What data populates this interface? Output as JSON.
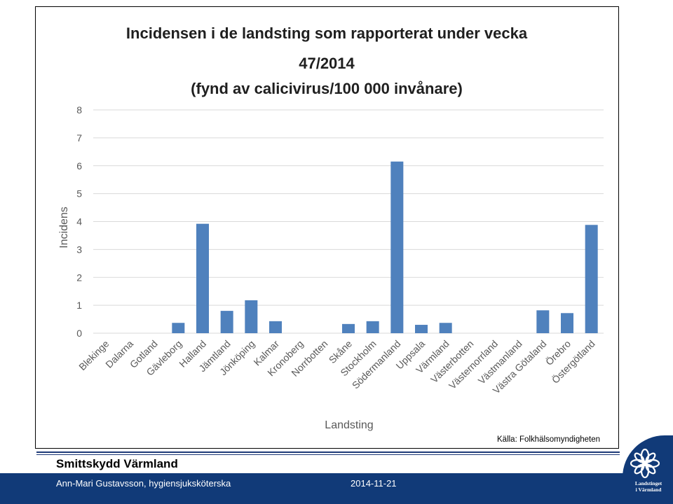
{
  "chart_data": {
    "type": "bar",
    "title": [
      "Incidensen i de landsting som rapporterat under vecka",
      "47/2014",
      "(fynd av calicivirus/100 000 invånare)"
    ],
    "xlabel": "Landsting",
    "ylabel": "Incidens",
    "ylim": [
      0,
      8
    ],
    "yticks": [
      "0",
      "1",
      "2",
      "3",
      "4",
      "5",
      "6",
      "7",
      "8"
    ],
    "grid": true,
    "bar_color": "#4f81bd",
    "categories": [
      "Blekinge",
      "Dalarna",
      "Gotland",
      "Gävleborg",
      "Halland",
      "Jämtland",
      "Jönköping",
      "Kalmar",
      "Kronoberg",
      "Norrbotten",
      "Skåne",
      "Stockholm",
      "Södermanland",
      "Uppsala",
      "Värmland",
      "Västerbotten",
      "Västernorrland",
      "Västmanland",
      "Västra Götaland",
      "Örebro",
      "Östergötland"
    ],
    "values": [
      0,
      0,
      0,
      0.37,
      3.92,
      0.8,
      1.18,
      0.43,
      0,
      0,
      0.33,
      0.43,
      6.15,
      0.3,
      0.37,
      0,
      0,
      0,
      0.82,
      0.72,
      3.88
    ]
  },
  "source_note": "Källa: Folkhälsomyndigheten",
  "org_name": "Smittskydd Värmland",
  "footer": {
    "author": "Ann-Mari Gustavsson, hygiensjuksköterska",
    "date": "2014-11-21"
  },
  "logo": {
    "line1": "Landstinget",
    "line2": "i Värmland"
  },
  "colors": {
    "footer_blue": "#113a78",
    "bar_blue": "#4f81bd"
  }
}
